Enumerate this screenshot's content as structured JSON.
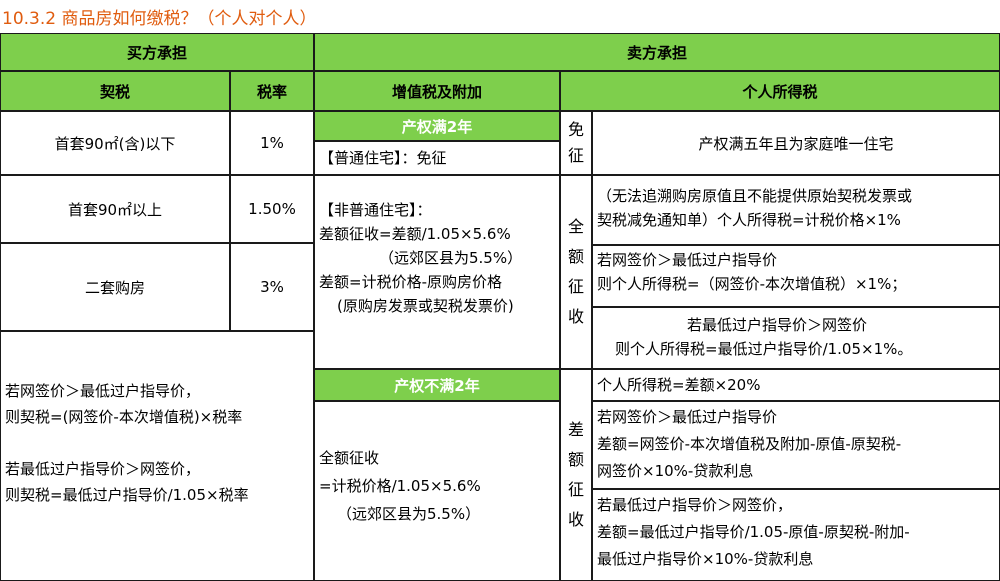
{
  "title": "10.3.2 商品房如何缴税？（个人对个人）",
  "buyer": {
    "header": "买方承担",
    "col_deed_tax": "契税",
    "col_rate": "税率",
    "rows": [
      {
        "label": "首套90㎡(含)以下",
        "rate": "1%"
      },
      {
        "label": "首套90㎡以上",
        "rate": "1.50%"
      },
      {
        "label": "二套购房",
        "rate": "3%"
      }
    ],
    "note": [
      "若网签价＞最低过户指导价，",
      "则契税=(网签价-本次增值税)×税率",
      "若最低过户指导价＞网签价，",
      "则契税=最低过户指导价/1.05×税率"
    ]
  },
  "seller": {
    "header": "卖方承担",
    "vat_header": "增值税及附加",
    "income_header": "个人所得税",
    "over2_label": "产权满2年",
    "ordinary": "【普通住宅】：免征",
    "non_ordinary": [
      "【非普通住宅】：",
      "差额征收=差额/1.05×5.6%",
      "（远郊区县为5.5%）",
      "差额=计税价格-原购房价格",
      "(原购房发票或契税发票价)"
    ],
    "under2_label": "产权不满2年",
    "full_levy": [
      "全额征收",
      "=计税价格/1.05×5.6%",
      "（远郊区县为5.5%）"
    ],
    "exempt_vertical": [
      "免",
      "征"
    ],
    "full_vertical": [
      "全",
      "额",
      "征",
      "收"
    ],
    "diff_vertical": [
      "差",
      "额",
      "征",
      "收"
    ],
    "exempt_text": "产权满五年且为家庭唯一住宅",
    "full_a": [
      "（无法追溯购房原值且不能提供原始契税发票或",
      "契税减免通知单）个人所得税=计税价格×1%"
    ],
    "full_b": [
      "若网签价＞最低过户指导价",
      "则个人所得税=（网签价-本次增值税）×1%；"
    ],
    "full_c": [
      "若最低过户指导价＞网签价",
      "则个人所得税=最低过户指导价/1.05×1%。"
    ],
    "diff_a": "个人所得税=差额×20%",
    "diff_b": [
      "若网签价＞最低过户指导价",
      "差额=网签价-本次增值税及附加-原值-原契税-",
      "网签价×10%-贷款利息"
    ],
    "diff_c": [
      "若最低过户指导价＞网签价，",
      "差额=最低过户指导价/1.05-原值-原契税-附加-",
      "最低过户指导价×10%-贷款利息"
    ]
  }
}
